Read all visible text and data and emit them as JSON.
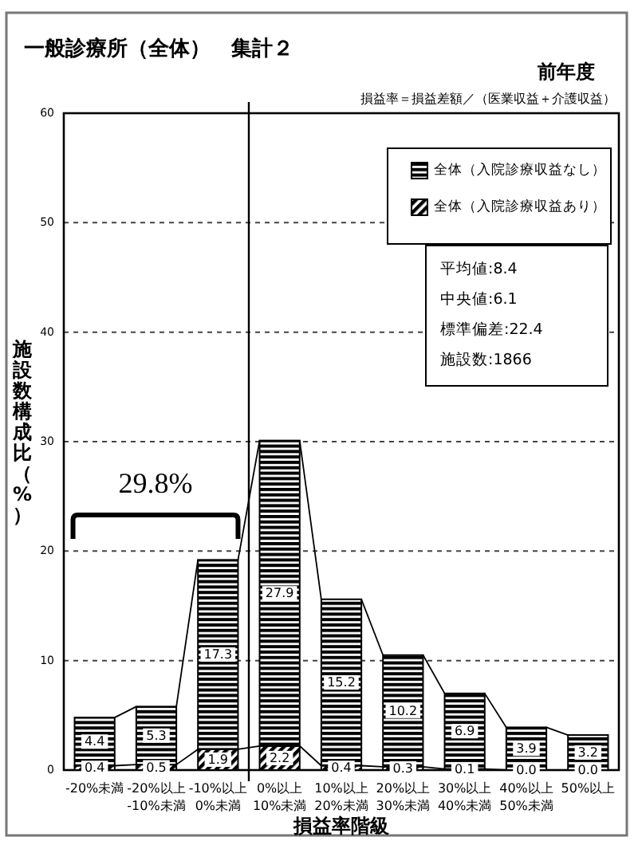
{
  "chart_data": {
    "type": "bar",
    "title": "一般診療所（全体）　集計２",
    "subtitle": "前年度",
    "xlabel": "損益率階級",
    "ylabel": "施設数構成比（%）",
    "categories": [
      "-20%未満",
      "-20%以上\n-10%未満",
      "-10%以上\n0%未満",
      "0%以上\n10%未満",
      "10%以上\n20%未満",
      "20%以上\n30%未満",
      "30%以上\n40%未満",
      "40%以上\n50%未満",
      "50%以上"
    ],
    "stacked": true,
    "series": [
      {
        "name": "全体（入院診療収益あり）",
        "color": "#000000",
        "values": [
          0.4,
          0.5,
          1.9,
          2.2,
          0.4,
          0.3,
          0.1,
          0.0,
          0.0
        ],
        "value_labels": [
          "0.4",
          "0.5",
          "1.9",
          "2.2",
          "0.4",
          "0.3",
          "0.1",
          "0.0",
          "0.0"
        ]
      },
      {
        "name": "全体（入院診療収益なし）",
        "color": "#000000",
        "values": [
          4.4,
          5.3,
          17.3,
          27.9,
          15.2,
          10.2,
          6.9,
          3.9,
          3.2
        ],
        "value_labels": [
          "4.4",
          "5.3",
          "17.3",
          "27.9",
          "15.2",
          "10.2",
          "6.9",
          "3.9",
          "3.2"
        ]
      }
    ],
    "ylim": [
      0,
      60
    ],
    "yticks": [
      0,
      10,
      20,
      30,
      40,
      50,
      60
    ],
    "grid": "y",
    "legend": "top right",
    "ref_lines": [
      {
        "axis": "x",
        "value": "0%以上\n10%未満"
      }
    ],
    "annotations": [
      "損益率＝損益差額／（医業収益＋介護収益）",
      "平均値:8.4",
      "中央値:6.1",
      "標準偏差:22.4",
      "施設数:1866",
      "29.8%"
    ]
  }
}
